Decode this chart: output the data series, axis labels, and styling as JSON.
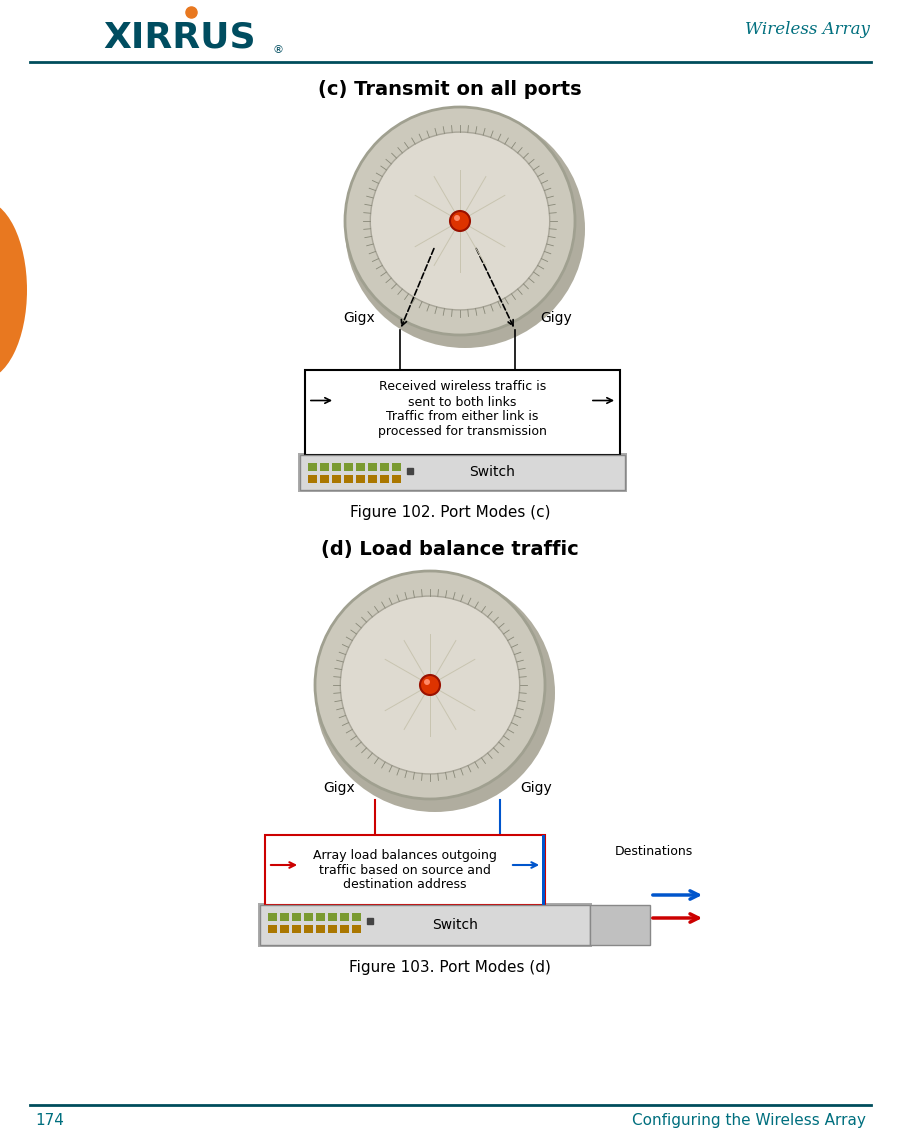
{
  "page_title": "Wireless Array",
  "page_number": "174",
  "page_footer": "Configuring the Wireless Array",
  "header_line_color": "#004d5c",
  "footer_line_color": "#004d5c",
  "teal_color": "#006f7e",
  "diagram1_title": "(c) Transmit on all ports",
  "diagram1_caption": "Figure 102. Port Modes (c)",
  "diagram1_box_text": "Received wireless traffic is\nsent to both links\nTraffic from either link is\nprocessed for transmission",
  "diagram2_title": "(d) Load balance traffic",
  "diagram2_caption": "Figure 103. Port Modes (d)",
  "diagram2_box_text": "Array load balances outgoing\ntraffic based on source and\ndestination address",
  "diagram2_dest_text": "Destinations",
  "gigx_label": "Gigx",
  "gigy_label": "Gigy",
  "switch_label": "Switch",
  "bg_color": "#ffffff",
  "device_outer_color": "#ccc9bc",
  "device_mid_color": "#d8d5c8",
  "device_inner_color": "#dedad0",
  "device_ring_color": "#b5b2a5",
  "device_center_color": "#dd3300",
  "switch_body_color": "#d8d8d8",
  "switch_edge_color": "#999999",
  "box_border_color": "#000000",
  "arrow_color": "#000000",
  "red_color": "#cc0000",
  "blue_color": "#0055cc",
  "orange_color": "#e87820",
  "xirrus_teal": "#004d60",
  "logo_dot_color": "#e87820"
}
